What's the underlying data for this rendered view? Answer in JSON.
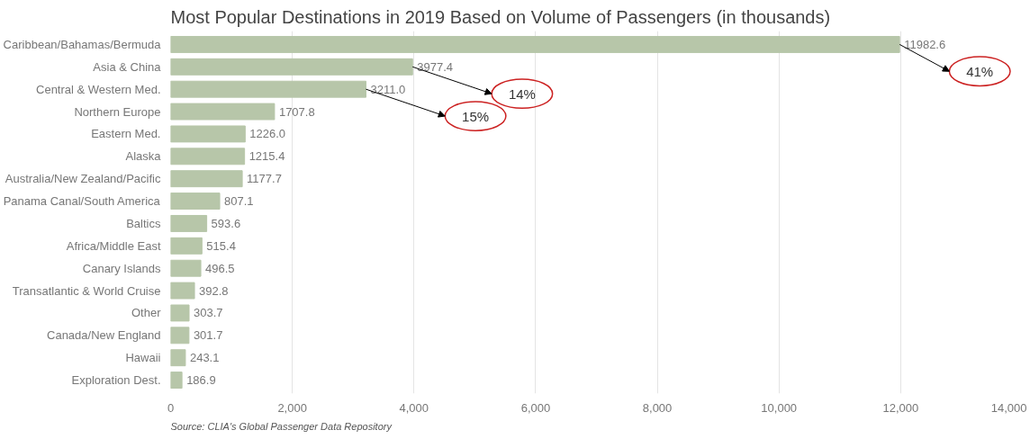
{
  "chart_data": {
    "type": "bar",
    "orientation": "horizontal",
    "title": "Most Popular Destinations in 2019 Based on Volume of Passengers (in thousands)",
    "categories": [
      "Caribbean/Bahamas/Bermuda",
      "Asia & China",
      "Central & Western Med.",
      "Northern Europe",
      "Eastern Med.",
      "Alaska",
      "Australia/New Zealand/Pacific",
      "Panama Canal/South America",
      "Baltics",
      "Africa/Middle East",
      "Canary Islands",
      "Transatlantic & World Cruise",
      "Other",
      "Canada/New England",
      "Hawaii",
      "Exploration Dest."
    ],
    "values": [
      11982.6,
      3977.4,
      3211.0,
      1707.8,
      1226.0,
      1215.4,
      1177.7,
      807.1,
      593.6,
      515.4,
      496.5,
      392.8,
      303.7,
      301.7,
      243.1,
      186.9
    ],
    "color": "#b7c6a9",
    "value_labels": [
      "11982.6",
      "3977.4",
      "3211.0",
      "1707.8",
      "1226.0",
      "1215.4",
      "1177.7",
      "807.1",
      "593.6",
      "515.4",
      "496.5",
      "392.8",
      "303.7",
      "301.7",
      "243.1",
      "186.9"
    ],
    "xlim": [
      0,
      14000
    ],
    "xticks": [
      {
        "value": 0,
        "label": "0"
      },
      {
        "value": 2000,
        "label": "2,000"
      },
      {
        "value": 4000,
        "label": "4,000"
      },
      {
        "value": 6000,
        "label": "6,000"
      },
      {
        "value": 8000,
        "label": "8,000"
      },
      {
        "value": 10000,
        "label": "10,000"
      },
      {
        "value": 12000,
        "label": "12,000"
      },
      {
        "value": 14000,
        "label": "14,000"
      }
    ],
    "grid": "x",
    "annotations": [
      {
        "text": "41%",
        "x": 11982.6,
        "y": "Caribbean/Bahamas/Bermuda"
      },
      {
        "text": "14%",
        "x": 3977.4,
        "y": "Asia & China"
      },
      {
        "text": "15%",
        "x": 3211.0,
        "y": "Central & Western Med."
      },
      "Source: CLIA's Global Passenger Data Repository"
    ]
  }
}
